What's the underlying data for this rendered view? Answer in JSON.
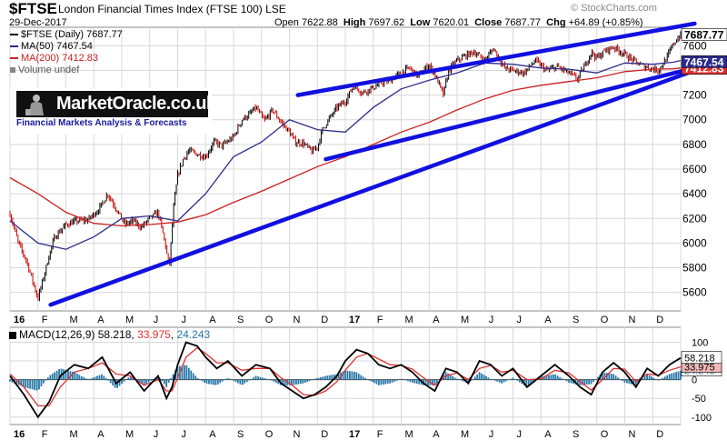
{
  "header": {
    "symbol": "$FTSE",
    "name": "London Financial Times Index (FTSE 100)",
    "exchange": "LSE",
    "date": "29-Dec-2017",
    "open_label": "Open",
    "open": "7622.88",
    "high_label": "High",
    "high": "7697.62",
    "low_label": "Low",
    "low": "7620.01",
    "close_label": "Close",
    "close": "7687.77",
    "chg_label": "Chg",
    "chg": "+64.89 (+0.85%)",
    "watermark": "© StockCharts.com"
  },
  "legend": {
    "price": "$FTSE (Daily) 7687.77",
    "ma50": "MA(50) 7467.54",
    "ma200": "MA(200) 7412.83",
    "volume": "Volume undef"
  },
  "logo": {
    "title": "MarketOracle.co.uk",
    "subtitle": "Financial Markets Analysis & Forecasts"
  },
  "colors": {
    "price_up": "#000000",
    "price_down": "#cc0000",
    "ma50": "#2c2c8c",
    "ma200": "#cc2020",
    "trendline": "#1010e0",
    "macd_line": "#000000",
    "macd_signal": "#e03030",
    "macd_hist": "#2878a8",
    "grid": "#d8d8d8"
  },
  "chart_data": [
    {
      "type": "line",
      "title": "$FTSE (Daily)",
      "ylim": [
        5450,
        7750
      ],
      "yticks": [
        5600,
        5800,
        6000,
        6200,
        6400,
        6600,
        6800,
        7000,
        7200,
        7400,
        7600
      ],
      "x_labels": [
        "16",
        "F",
        "M",
        "A",
        "M",
        "J",
        "J",
        "A",
        "S",
        "O",
        "N",
        "D",
        "17",
        "F",
        "M",
        "A",
        "M",
        "J",
        "J",
        "A",
        "S",
        "O",
        "N",
        "D"
      ],
      "x_months": [
        0,
        1,
        2,
        3,
        4,
        5,
        6,
        7,
        8,
        9,
        10,
        11,
        12,
        13,
        14,
        15,
        16,
        17,
        18,
        19,
        20,
        21,
        22,
        23,
        24
      ],
      "price_label": "7687.77",
      "ma50_label": "7467.54",
      "ma200_label": "7412.83",
      "series": [
        {
          "name": "$FTSE",
          "x": [
            0,
            0.3,
            0.6,
            1.0,
            1.2,
            1.4,
            1.6,
            1.8,
            2.0,
            2.4,
            2.8,
            3.2,
            3.5,
            3.8,
            4.1,
            4.4,
            4.7,
            5.0,
            5.3,
            5.55,
            5.7,
            5.85,
            6.0,
            6.2,
            6.4,
            6.7,
            7.0,
            7.3,
            7.6,
            8.0,
            8.3,
            8.6,
            8.8,
            9.1,
            9.4,
            9.7,
            10.0,
            10.2,
            10.5,
            10.8,
            11.0,
            11.2,
            11.4,
            11.7,
            12.0,
            12.3,
            12.6,
            13.0,
            13.3,
            13.6,
            14.0,
            14.3,
            14.6,
            15.0,
            15.3,
            15.5,
            15.7,
            16.0,
            16.3,
            16.6,
            17.0,
            17.3,
            17.7,
            18.0,
            18.4,
            18.8,
            19.2,
            19.6,
            20.0,
            20.3,
            20.6,
            20.8,
            21.0,
            21.3,
            21.6,
            22.0,
            22.3,
            22.6,
            22.9,
            23.2,
            23.5,
            23.75,
            24.0
          ],
          "y": [
            6240,
            6000,
            5850,
            5550,
            5720,
            5900,
            6050,
            6100,
            6150,
            6180,
            6190,
            6280,
            6400,
            6280,
            6150,
            6180,
            6130,
            6200,
            6250,
            6000,
            5800,
            6280,
            6550,
            6680,
            6750,
            6720,
            6700,
            6820,
            6790,
            6860,
            7000,
            7050,
            7100,
            6990,
            7080,
            6980,
            6900,
            6820,
            6810,
            6740,
            6780,
            6930,
            7000,
            7100,
            7150,
            7280,
            7220,
            7260,
            7300,
            7320,
            7380,
            7420,
            7350,
            7450,
            7320,
            7200,
            7400,
            7480,
            7520,
            7550,
            7480,
            7580,
            7420,
            7400,
            7380,
            7480,
            7400,
            7430,
            7380,
            7330,
            7450,
            7550,
            7500,
            7560,
            7590,
            7530,
            7480,
            7440,
            7420,
            7400,
            7500,
            7620,
            7688
          ]
        },
        {
          "name": "MA(50)",
          "x": [
            0,
            1,
            2,
            3,
            4,
            5,
            6,
            7,
            8,
            9,
            10,
            11,
            12,
            13,
            14,
            15,
            16,
            17,
            18,
            19,
            20,
            21,
            22,
            23,
            23.75,
            24.0
          ],
          "y": [
            6180,
            6000,
            5950,
            6050,
            6200,
            6220,
            6180,
            6400,
            6700,
            6820,
            7000,
            6920,
            6900,
            7100,
            7250,
            7320,
            7380,
            7460,
            7450,
            7420,
            7410,
            7380,
            7460,
            7450,
            7467,
            7480
          ]
        },
        {
          "name": "MA(200)",
          "x": [
            0,
            1,
            2,
            3,
            4,
            5,
            6,
            7,
            8,
            9,
            10,
            11,
            12,
            13,
            14,
            15,
            16,
            17,
            18,
            19,
            20,
            21,
            22,
            23,
            23.75,
            24.0
          ],
          "y": [
            6530,
            6400,
            6250,
            6160,
            6140,
            6150,
            6170,
            6230,
            6330,
            6420,
            6520,
            6620,
            6700,
            6800,
            6900,
            6980,
            7080,
            7170,
            7240,
            7280,
            7310,
            7340,
            7390,
            7410,
            7413,
            7420
          ]
        }
      ],
      "annotations": [
        {
          "name": "lower-support-trendline",
          "x": [
            1.45,
            24.5
          ],
          "y": [
            5500,
            7400
          ]
        },
        {
          "name": "upper-channel-trendline",
          "x": [
            10.3,
            24.5
          ],
          "y": [
            7200,
            7780
          ]
        },
        {
          "name": "lower-channel-trendline",
          "x": [
            11.3,
            24.5
          ],
          "y": [
            6680,
            7420
          ]
        }
      ]
    },
    {
      "type": "line",
      "title": "MACD(12,26,9)",
      "ylim": [
        -120,
        140
      ],
      "yticks": [
        -100,
        -50,
        0,
        50,
        100
      ],
      "legend_title": "MACD(12,26,9)",
      "macd_value": "58.218",
      "signal_value": "33.975",
      "hist_value": "24.243",
      "series": [
        {
          "name": "MACD",
          "x": [
            0,
            0.5,
            1.0,
            1.4,
            1.8,
            2.3,
            2.8,
            3.3,
            3.8,
            4.3,
            4.8,
            5.3,
            5.6,
            5.8,
            6.0,
            6.3,
            6.7,
            7.0,
            7.4,
            7.8,
            8.3,
            8.8,
            9.3,
            9.7,
            10.1,
            10.5,
            10.9,
            11.3,
            11.7,
            12.0,
            12.4,
            12.8,
            13.2,
            13.6,
            14.0,
            14.4,
            14.8,
            15.2,
            15.6,
            16.0,
            16.4,
            16.8,
            17.2,
            17.6,
            18.0,
            18.5,
            19.0,
            19.5,
            20.0,
            20.4,
            20.8,
            21.2,
            21.6,
            22.0,
            22.4,
            22.8,
            23.2,
            23.6,
            24.0
          ],
          "y": [
            10,
            -40,
            -100,
            -60,
            10,
            40,
            30,
            60,
            -10,
            20,
            -30,
            10,
            -50,
            -20,
            40,
            100,
            90,
            60,
            30,
            50,
            10,
            40,
            30,
            -10,
            -30,
            -50,
            -40,
            -20,
            10,
            50,
            80,
            70,
            40,
            30,
            40,
            20,
            -10,
            -30,
            30,
            20,
            -10,
            50,
            40,
            10,
            30,
            -20,
            10,
            40,
            10,
            -20,
            -40,
            20,
            45,
            20,
            -20,
            30,
            10,
            40,
            58
          ]
        },
        {
          "name": "Signal",
          "x": [
            0,
            0.5,
            1.0,
            1.4,
            1.8,
            2.3,
            2.8,
            3.3,
            3.8,
            4.3,
            4.8,
            5.3,
            5.6,
            5.8,
            6.0,
            6.3,
            6.7,
            7.0,
            7.4,
            7.8,
            8.3,
            8.8,
            9.3,
            9.7,
            10.1,
            10.5,
            10.9,
            11.3,
            11.7,
            12.0,
            12.4,
            12.8,
            13.2,
            13.6,
            14.0,
            14.4,
            14.8,
            15.2,
            15.6,
            16.0,
            16.4,
            16.8,
            17.2,
            17.6,
            18.0,
            18.5,
            19.0,
            19.5,
            20.0,
            20.4,
            20.8,
            21.2,
            21.6,
            22.0,
            22.4,
            22.8,
            23.2,
            23.6,
            24.0
          ],
          "y": [
            15,
            -20,
            -70,
            -70,
            -20,
            20,
            30,
            45,
            15,
            10,
            -15,
            0,
            -30,
            -30,
            5,
            60,
            85,
            70,
            45,
            45,
            25,
            30,
            30,
            5,
            -15,
            -40,
            -42,
            -30,
            -5,
            25,
            60,
            70,
            55,
            40,
            38,
            28,
            5,
            -15,
            10,
            18,
            0,
            30,
            38,
            20,
            25,
            0,
            2,
            25,
            18,
            -5,
            -28,
            0,
            30,
            28,
            -5,
            15,
            12,
            25,
            34
          ]
        },
        {
          "name": "Histogram",
          "x": [
            0,
            0.5,
            1.0,
            1.4,
            1.8,
            2.3,
            2.8,
            3.3,
            3.8,
            4.3,
            4.8,
            5.3,
            5.6,
            5.8,
            6.0,
            6.3,
            6.7,
            7.0,
            7.4,
            7.8,
            8.3,
            8.8,
            9.3,
            9.7,
            10.1,
            10.5,
            10.9,
            11.3,
            11.7,
            12.0,
            12.4,
            12.8,
            13.2,
            13.6,
            14.0,
            14.4,
            14.8,
            15.2,
            15.6,
            16.0,
            16.4,
            16.8,
            17.2,
            17.6,
            18.0,
            18.5,
            19.0,
            19.5,
            20.0,
            20.4,
            20.8,
            21.2,
            21.6,
            22.0,
            22.4,
            22.8,
            23.2,
            23.6,
            24.0
          ],
          "y": [
            -5,
            -20,
            -30,
            10,
            30,
            20,
            0,
            15,
            -25,
            10,
            -15,
            10,
            -20,
            10,
            35,
            40,
            5,
            -10,
            -15,
            5,
            -15,
            10,
            0,
            -15,
            -15,
            -10,
            2,
            10,
            15,
            25,
            20,
            0,
            -15,
            -10,
            2,
            -8,
            -15,
            -15,
            20,
            2,
            -10,
            20,
            2,
            -10,
            5,
            -20,
            8,
            15,
            -8,
            -15,
            -12,
            20,
            15,
            -8,
            -15,
            15,
            -2,
            15,
            24
          ]
        }
      ],
      "x_labels": [
        "16",
        "F",
        "M",
        "A",
        "M",
        "J",
        "J",
        "A",
        "S",
        "O",
        "N",
        "D",
        "17",
        "F",
        "M",
        "A",
        "M",
        "J",
        "J",
        "A",
        "S",
        "O",
        "N",
        "D"
      ]
    }
  ]
}
